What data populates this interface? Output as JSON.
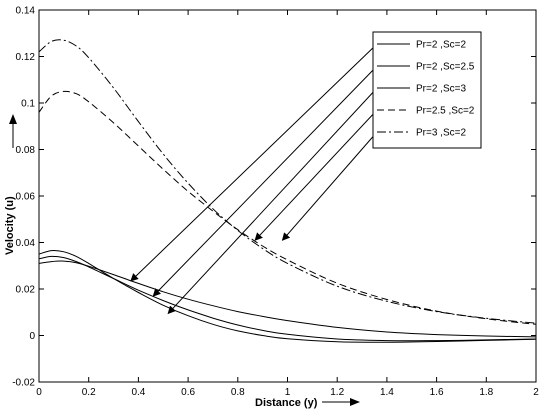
{
  "chart_data": {
    "type": "line",
    "title": "",
    "xlabel": "Distance (y)",
    "ylabel": "Velocity (u)",
    "xlim": [
      0,
      2
    ],
    "ylim": [
      -0.02,
      0.14
    ],
    "xticks": [
      "0",
      "0.2",
      "0.4",
      "0.6",
      "0.8",
      "1",
      "1.2",
      "1.4",
      "1.6",
      "1.8",
      "2"
    ],
    "yticks": [
      "-0.02",
      "0",
      "0.02",
      "0.04",
      "0.06",
      "0.08",
      "0.1",
      "0.12",
      "0.14"
    ],
    "grid": false,
    "legend_position": "top-right",
    "series": [
      {
        "name": "Pr=2 ,Sc=2",
        "style": "solid",
        "x": [
          0,
          0.05,
          0.1,
          0.15,
          0.2,
          0.3,
          0.4,
          0.5,
          0.6,
          0.7,
          0.8,
          0.9,
          1.0,
          1.2,
          1.4,
          1.6,
          1.8,
          2.0
        ],
        "y": [
          0.031,
          0.0318,
          0.032,
          0.0313,
          0.0298,
          0.0262,
          0.0224,
          0.0188,
          0.0156,
          0.0128,
          0.0103,
          0.0082,
          0.0064,
          0.0035,
          0.0015,
          0.0004,
          -0.0002,
          -0.0006
        ]
      },
      {
        "name": "Pr=2 ,Sc=2.5",
        "style": "solid",
        "x": [
          0,
          0.05,
          0.1,
          0.15,
          0.2,
          0.3,
          0.4,
          0.5,
          0.6,
          0.7,
          0.8,
          0.9,
          1.0,
          1.2,
          1.4,
          1.6,
          1.8,
          2.0
        ],
        "y": [
          0.033,
          0.034,
          0.0335,
          0.0318,
          0.0295,
          0.0245,
          0.0195,
          0.015,
          0.011,
          0.0075,
          0.0045,
          0.0022,
          0.0005,
          -0.0015,
          -0.0022,
          -0.0022,
          -0.0019,
          -0.0015
        ]
      },
      {
        "name": "Pr=2 ,Sc=3",
        "style": "solid",
        "x": [
          0,
          0.05,
          0.1,
          0.15,
          0.2,
          0.3,
          0.4,
          0.5,
          0.6,
          0.7,
          0.8,
          0.9,
          1.0,
          1.2,
          1.4,
          1.6,
          1.8,
          2.0
        ],
        "y": [
          0.035,
          0.0365,
          0.036,
          0.034,
          0.031,
          0.0245,
          0.0185,
          0.013,
          0.0085,
          0.0048,
          0.002,
          0.0,
          -0.0014,
          -0.0027,
          -0.0029,
          -0.0026,
          -0.0021,
          -0.0016
        ]
      },
      {
        "name": "Pr=2.5 ,Sc=2",
        "style": "dash",
        "x": [
          0,
          0.05,
          0.1,
          0.15,
          0.2,
          0.3,
          0.4,
          0.5,
          0.6,
          0.7,
          0.8,
          0.9,
          1.0,
          1.2,
          1.4,
          1.6,
          1.8,
          2.0
        ],
        "y": [
          0.096,
          0.103,
          0.105,
          0.104,
          0.1005,
          0.0915,
          0.0815,
          0.0715,
          0.062,
          0.0535,
          0.0455,
          0.0385,
          0.0325,
          0.0225,
          0.0155,
          0.0105,
          0.0072,
          0.0048
        ]
      },
      {
        "name": "Pr=3 ,Sc=2",
        "style": "dashdot",
        "x": [
          0,
          0.05,
          0.1,
          0.15,
          0.2,
          0.3,
          0.4,
          0.5,
          0.6,
          0.7,
          0.8,
          0.9,
          1.0,
          1.2,
          1.4,
          1.6,
          1.8,
          2.0
        ],
        "y": [
          0.122,
          0.1265,
          0.127,
          0.1245,
          0.1195,
          0.1065,
          0.092,
          0.078,
          0.0655,
          0.0545,
          0.0452,
          0.0374,
          0.031,
          0.0212,
          0.0147,
          0.0103,
          0.0074,
          0.0053
        ]
      }
    ],
    "annotations": [
      {
        "from_legend": 0,
        "to": [
          0.37,
          0.0235
        ]
      },
      {
        "from_legend": 1,
        "to": [
          0.46,
          0.017
        ]
      },
      {
        "from_legend": 2,
        "to": [
          0.52,
          0.0095
        ]
      },
      {
        "from_legend": 3,
        "to": [
          0.87,
          0.041
        ]
      },
      {
        "from_legend": 4,
        "to": [
          0.98,
          0.041
        ]
      }
    ]
  }
}
